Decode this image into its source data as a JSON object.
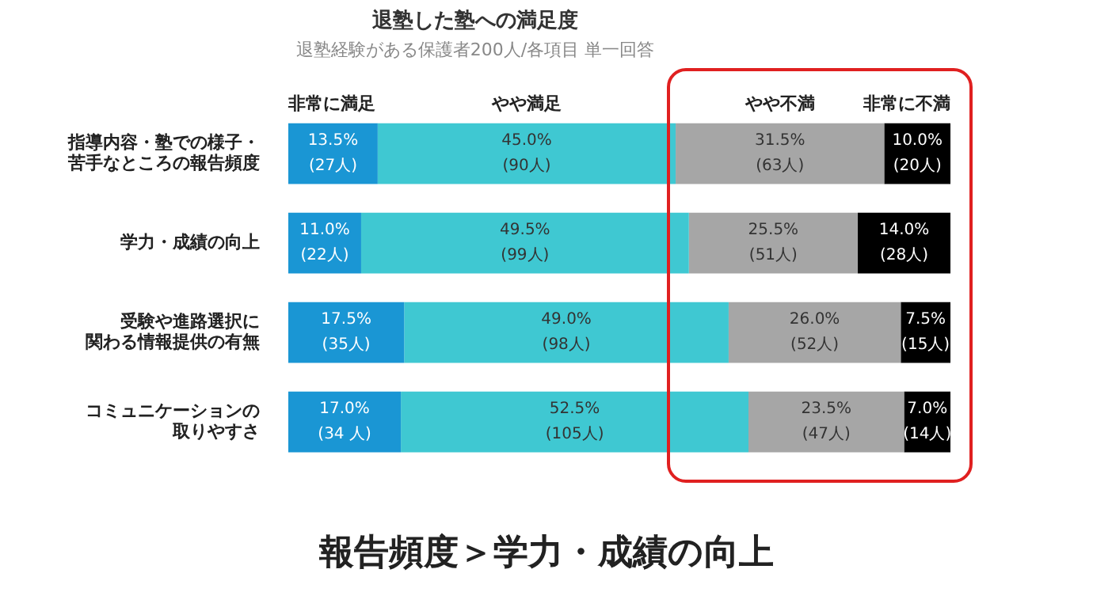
{
  "chart_data": {
    "type": "bar",
    "orientation": "horizontal",
    "stacked": true,
    "title": "退塾した塾への満足度",
    "subtitle": "退塾経験がある保護者200人/各項目 単一回答",
    "categories": [
      "指導内容・塾での様子・苦手なところの報告頻度",
      "学力・成績の向上",
      "受験や進路選択に関わる情報提供の有無",
      "コミュニケーションの取りやすさ"
    ],
    "series": [
      {
        "name": "非常に満足",
        "color": "#1a96d4",
        "values": [
          13.5,
          11.0,
          17.5,
          17.0
        ],
        "value_labels": [
          "13.5%\n(27人)",
          "11.0%\n(22人)",
          "17.5%\n(35人)",
          "17.0%\n(34 人)"
        ]
      },
      {
        "name": "やや満足",
        "color": "#3fc8d2",
        "values": [
          45.0,
          49.5,
          49.0,
          52.5
        ],
        "value_labels": [
          "45.0%\n(90人)",
          "49.5%\n(99人)",
          "49.0%\n(98人)",
          "52.5%\n(105人)"
        ]
      },
      {
        "name": "やや不満",
        "color": "#a6a6a6",
        "values": [
          31.5,
          25.5,
          26.0,
          23.5
        ],
        "value_labels": [
          "31.5%\n(63人)",
          "25.5%\n(51人)",
          "26.0%\n(52人)",
          "23.5%\n(47人)"
        ]
      },
      {
        "name": "非常に不満",
        "color": "#000000",
        "values": [
          10.0,
          14.0,
          7.5,
          7.0
        ],
        "value_labels": [
          "10.0%\n(20人)",
          "14.0%\n(28人)",
          "7.5%\n(15人)",
          "7.0%\n(14人)"
        ]
      }
    ],
    "xlim": [
      0,
      100
    ],
    "tick_labels": "y",
    "legend": "top",
    "annotations": [
      "報告頻度＞学力・成績の向上"
    ]
  }
}
